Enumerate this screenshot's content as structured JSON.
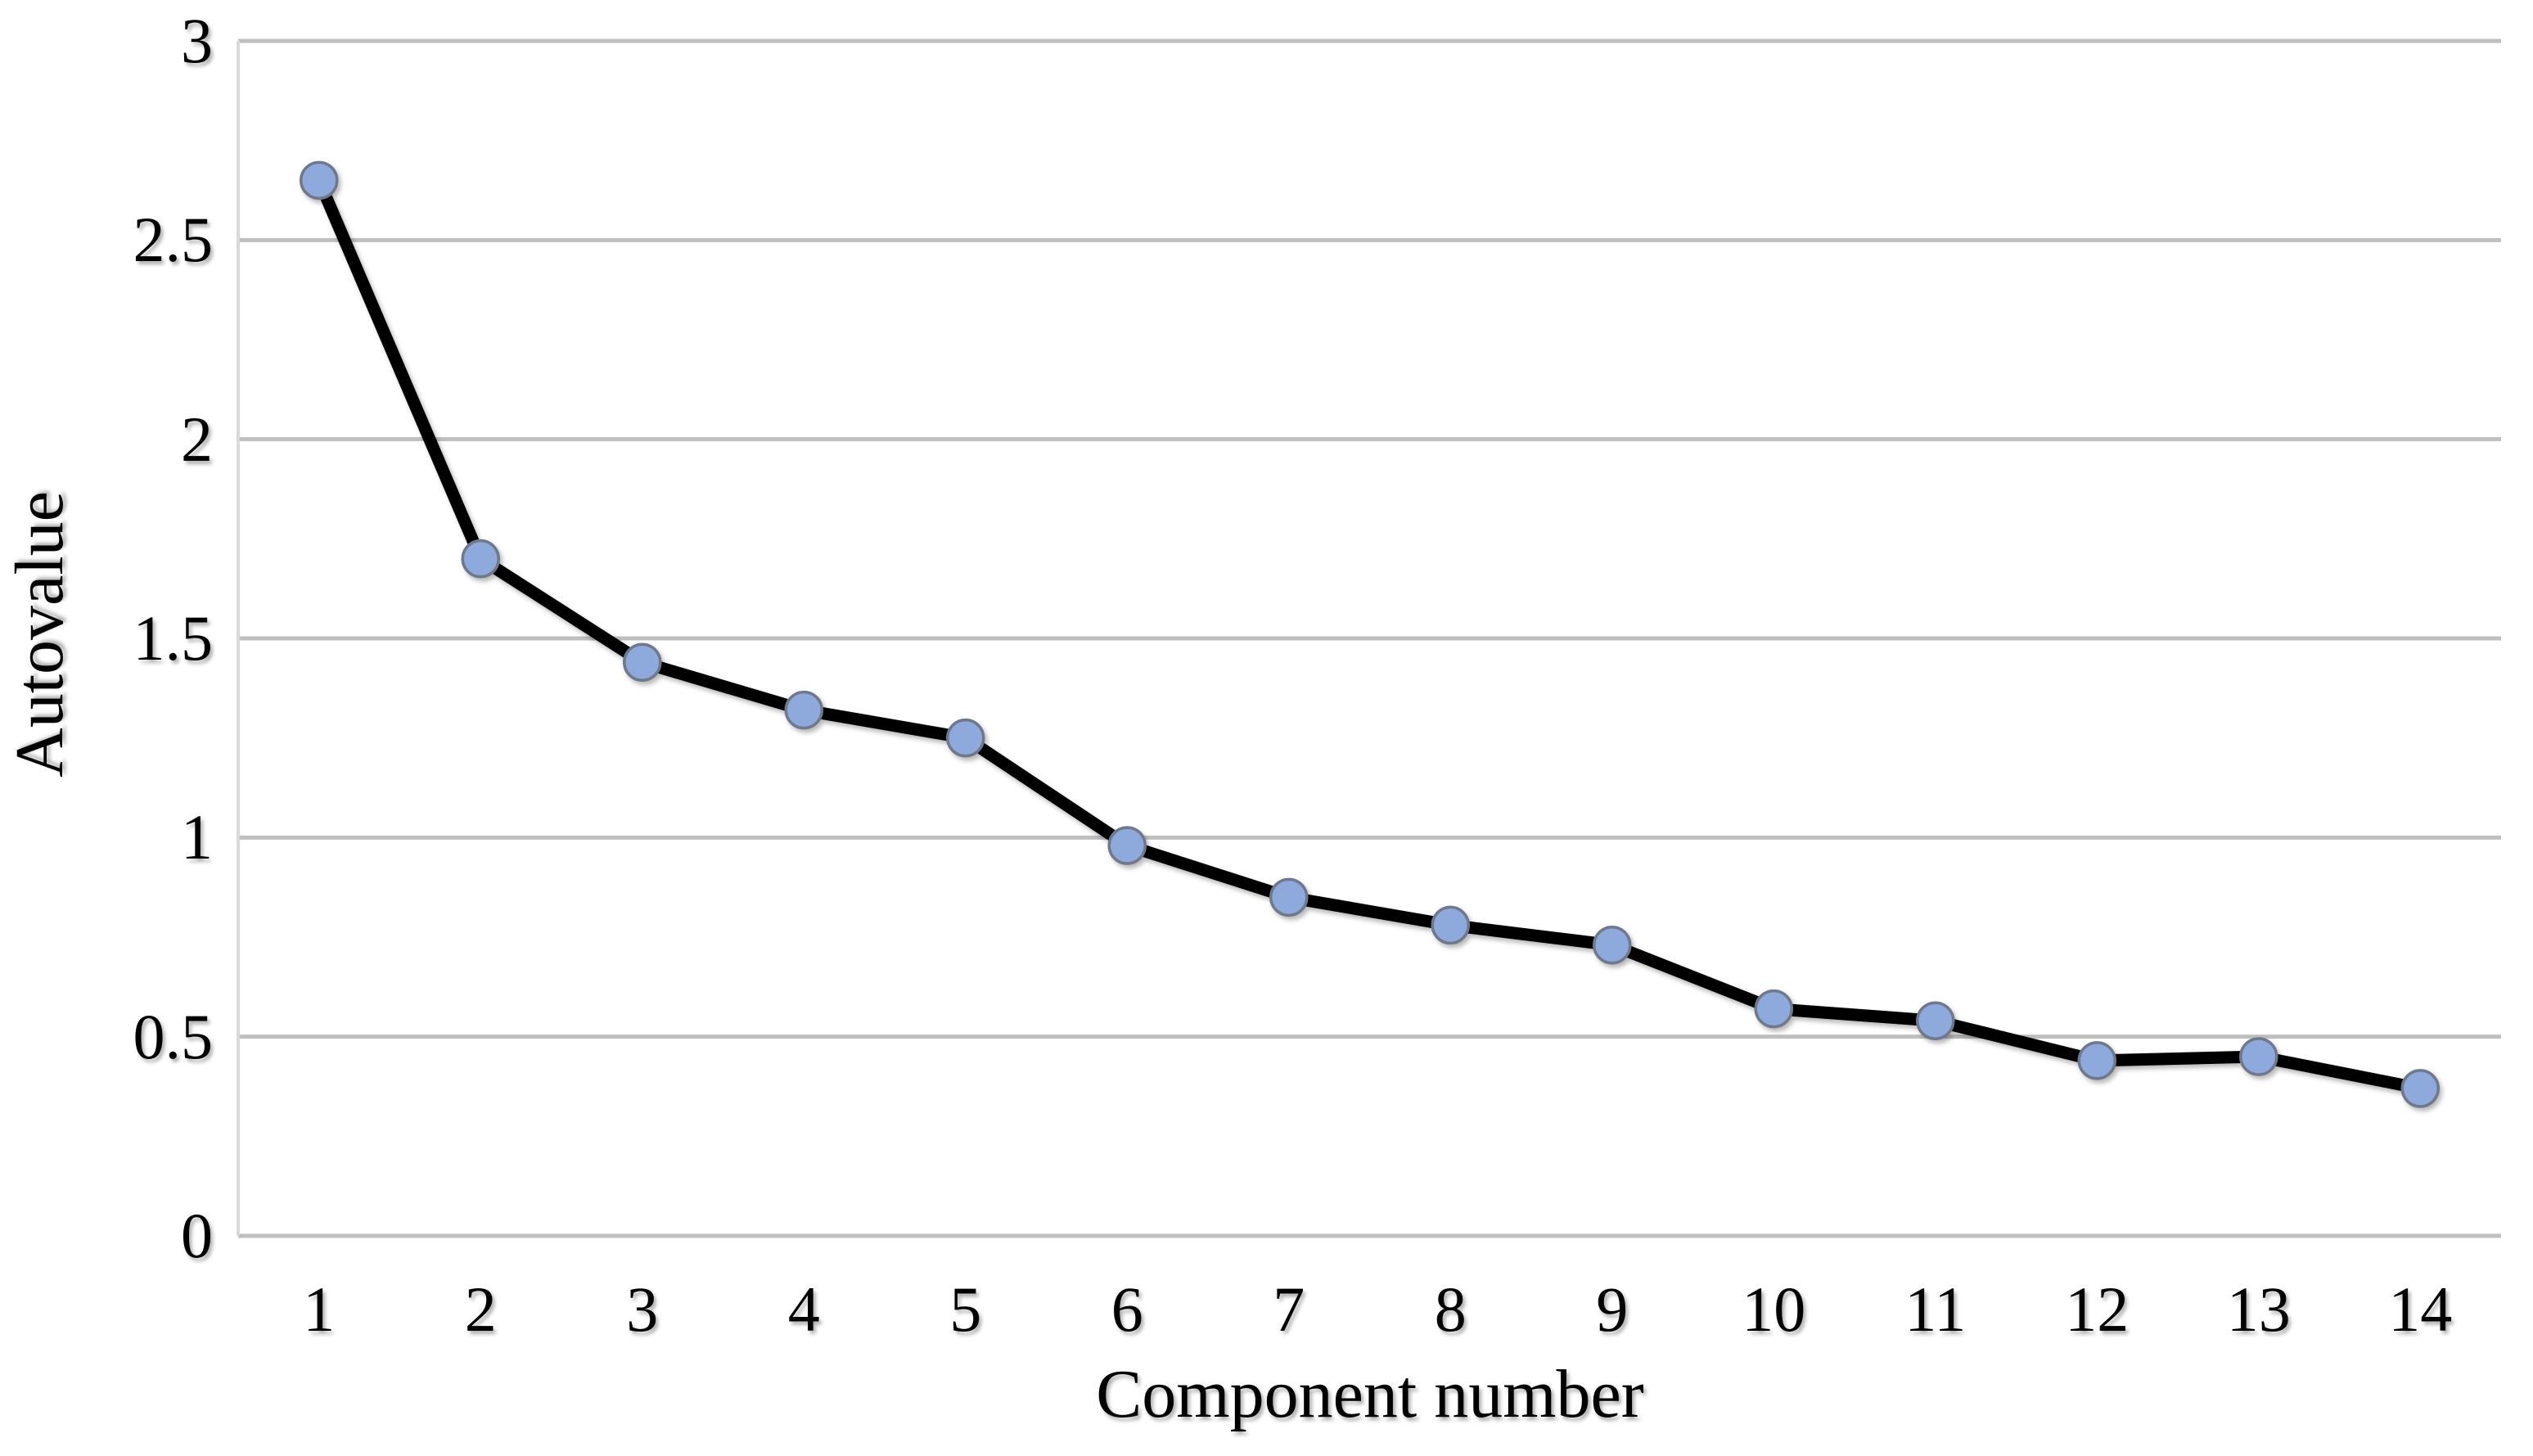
{
  "chart_data": {
    "type": "line",
    "title": "",
    "xlabel": "Component number",
    "ylabel": "Autovalue",
    "categories": [
      "1",
      "2",
      "3",
      "4",
      "5",
      "6",
      "7",
      "8",
      "9",
      "10",
      "11",
      "12",
      "13",
      "14"
    ],
    "values": [
      2.65,
      1.7,
      1.44,
      1.32,
      1.25,
      0.98,
      0.85,
      0.78,
      0.73,
      0.57,
      0.54,
      0.44,
      0.45,
      0.37
    ],
    "ylim": [
      0,
      3
    ],
    "ytick_step": 0.5,
    "ytick_labels": [
      "0",
      "0.5",
      "1",
      "1.5",
      "2",
      "2.5",
      "3"
    ],
    "grid": "horizontal",
    "legend": "none",
    "colors": {
      "line": "#000000",
      "marker_fill": "#8EA9DB",
      "marker_stroke": "#70798C",
      "gridline": "#BFBFBF",
      "axis_line": "#D9D9D9",
      "text": "#000000",
      "background": "#FFFFFF"
    }
  }
}
